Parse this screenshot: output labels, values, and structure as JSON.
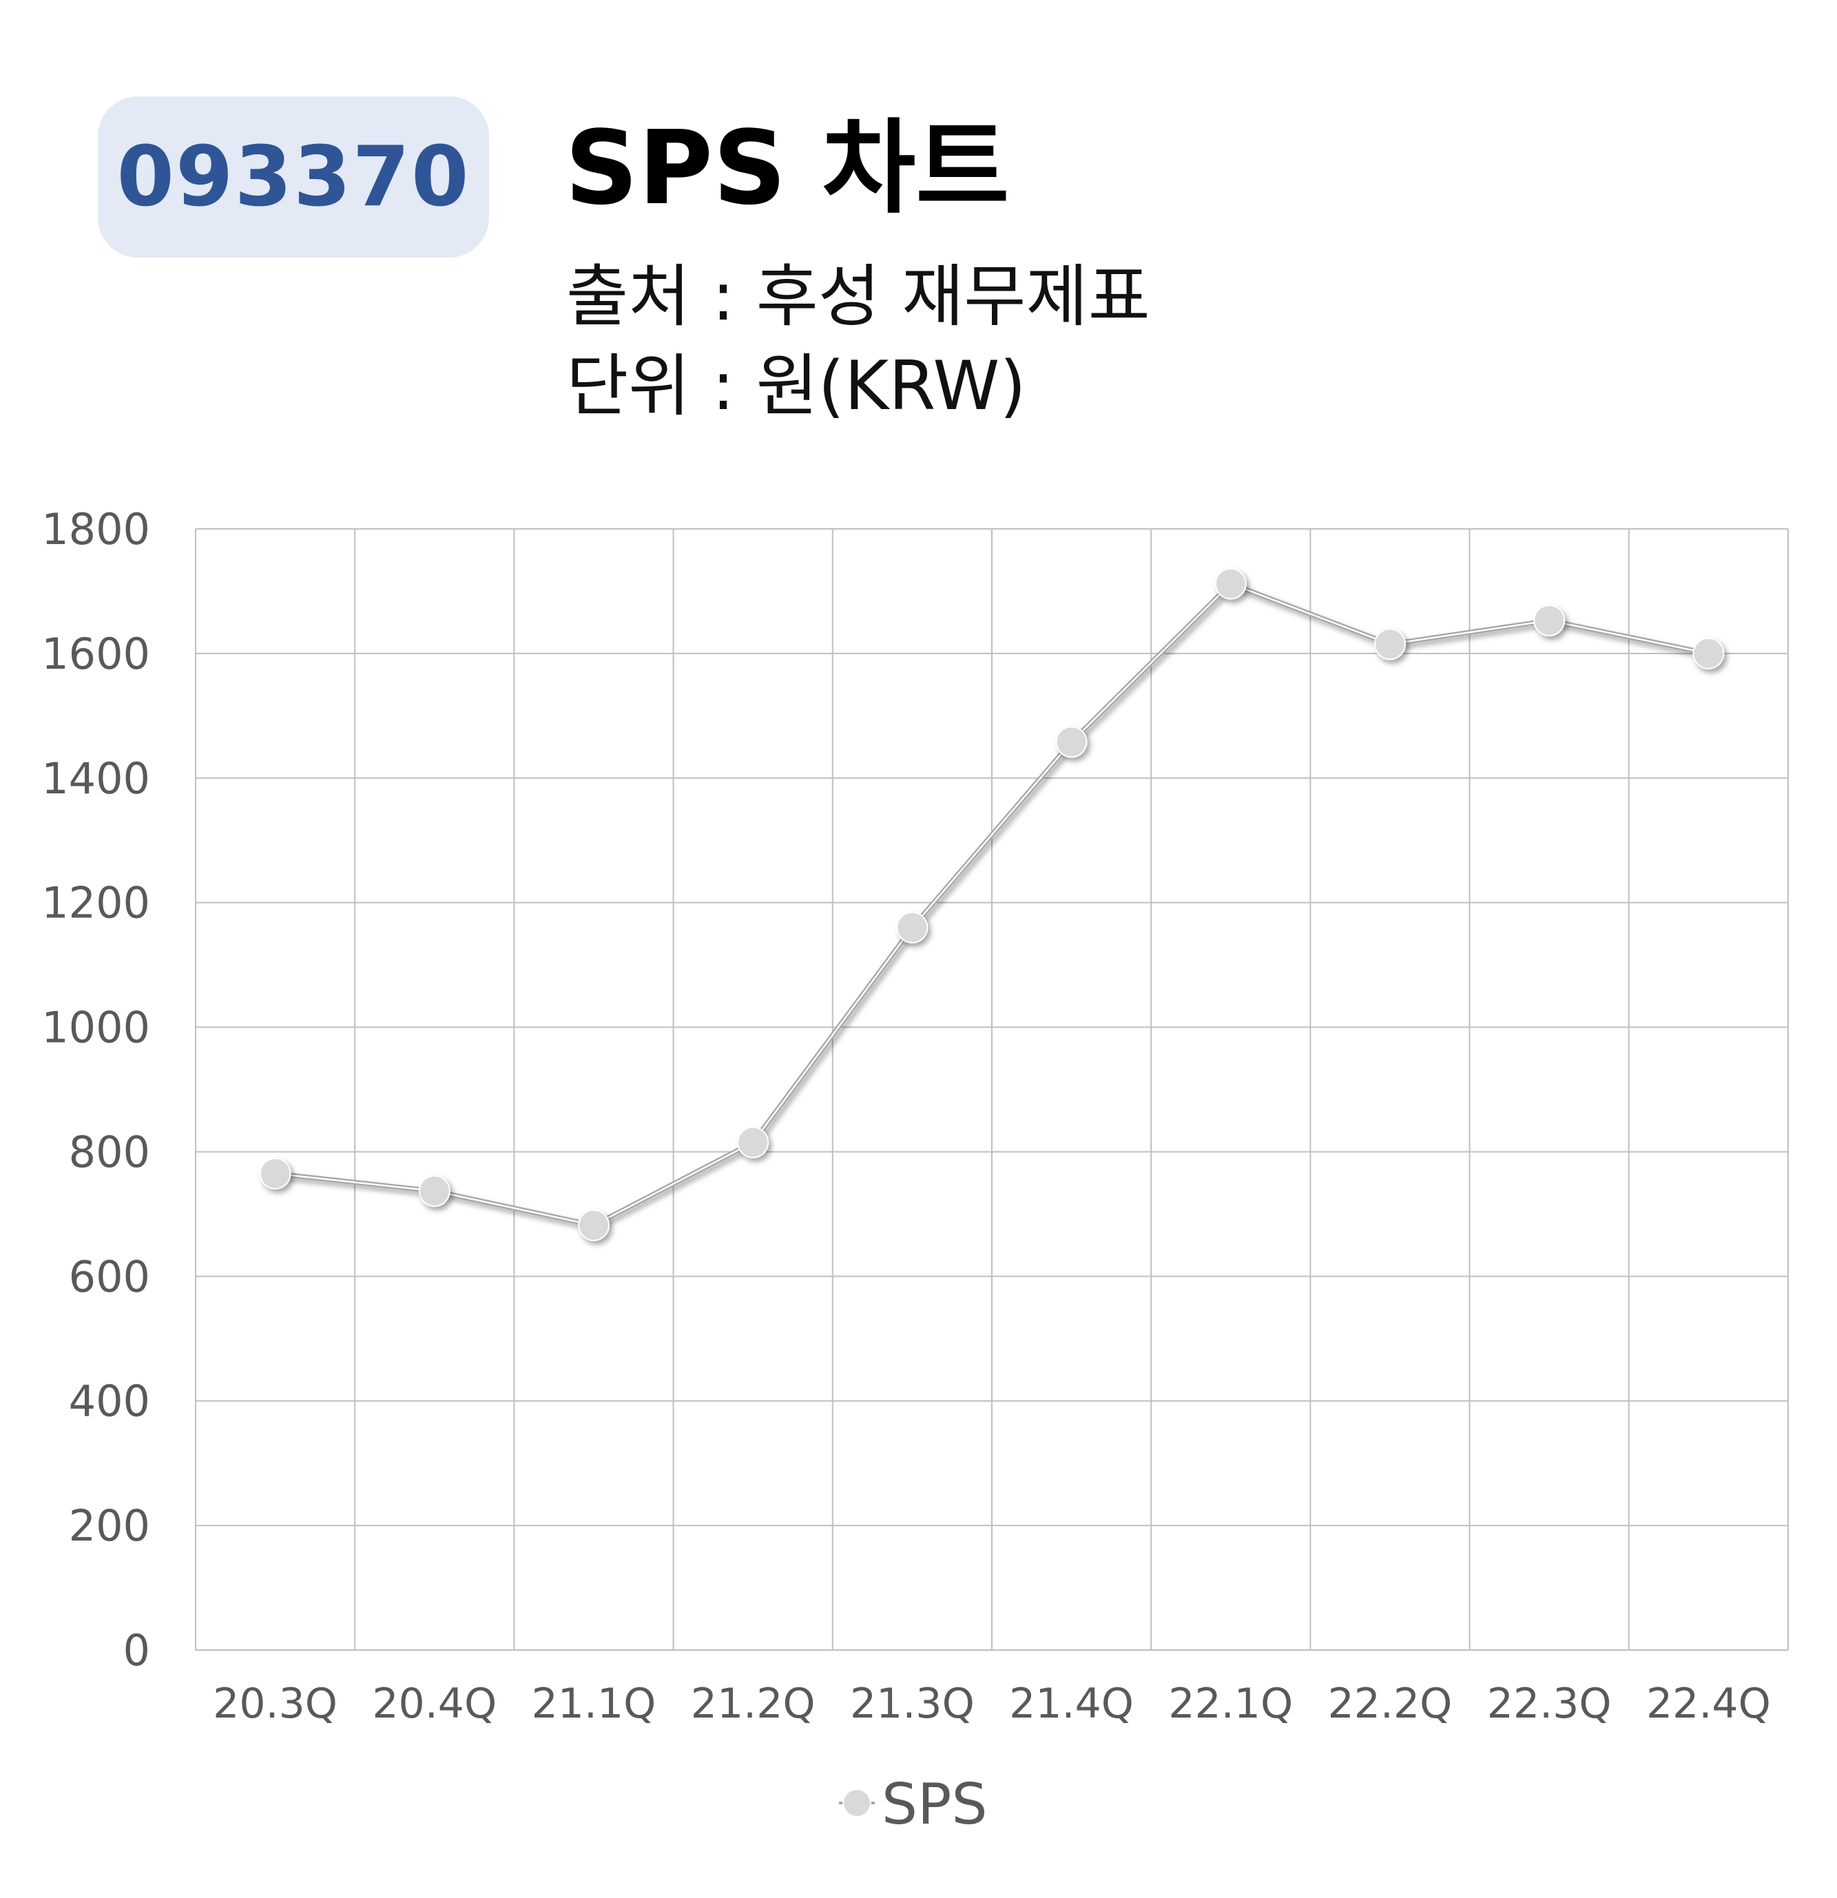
{
  "header": {
    "code": "093370",
    "title": "SPS 차트",
    "source": "출처 : 후성 재무제표",
    "unit": "단위 : 원(KRW)"
  },
  "colors": {
    "badge_bg": "#e3e9f5",
    "badge_text": "#2f5597",
    "grid": "#bfbfbf",
    "line": "#a6a6a6",
    "marker": "#d9d9d9",
    "tick_text": "#595959"
  },
  "chart_data": {
    "type": "line",
    "categories": [
      "20.3Q",
      "20.4Q",
      "21.1Q",
      "21.2Q",
      "21.3Q",
      "21.4Q",
      "22.1Q",
      "22.2Q",
      "22.3Q",
      "22.4Q"
    ],
    "series": [
      {
        "name": "SPS",
        "values": [
          765,
          737,
          682,
          815,
          1160,
          1458,
          1712,
          1615,
          1653,
          1600
        ]
      }
    ],
    "yticks": [
      "0",
      "200",
      "400",
      "600",
      "800",
      "1000",
      "1200",
      "1400",
      "1600",
      "1800"
    ],
    "ylim": [
      0,
      1800
    ],
    "grid": true,
    "legend": "bottom-center"
  }
}
